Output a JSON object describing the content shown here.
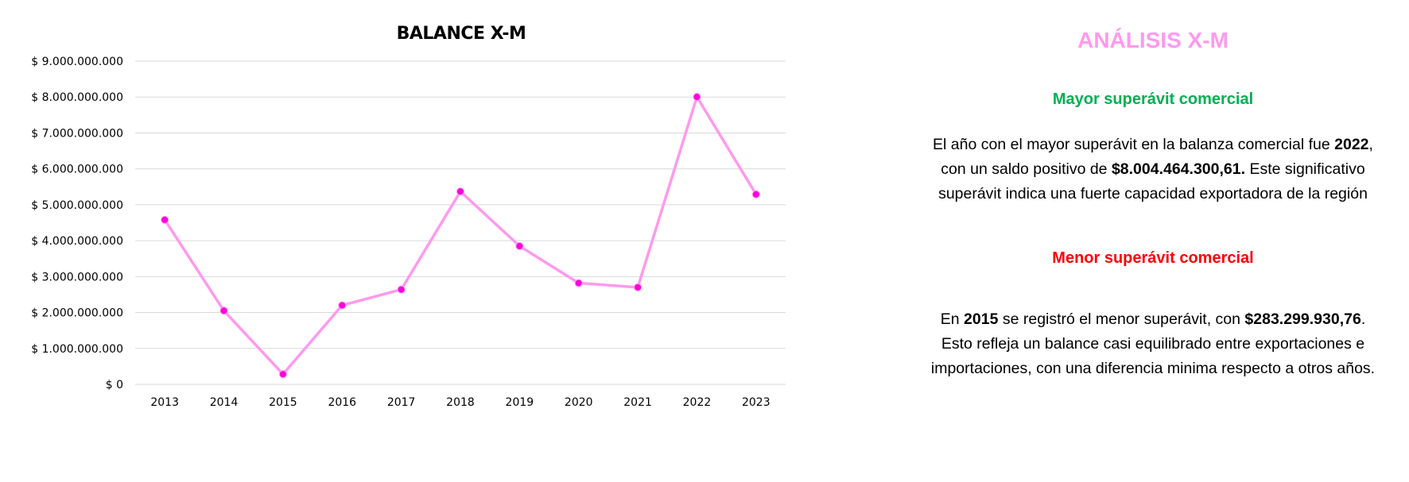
{
  "chart_data": {
    "type": "line",
    "title": "BALANCE X-M",
    "xlabel": "",
    "ylabel": "",
    "categories": [
      "2013",
      "2014",
      "2015",
      "2016",
      "2017",
      "2018",
      "2019",
      "2020",
      "2021",
      "2022",
      "2023"
    ],
    "values": [
      4580000000,
      2050000000,
      283299930.76,
      2200000000,
      2640000000,
      5370000000,
      3850000000,
      2820000000,
      2700000000,
      8004464300.61,
      5290000000
    ],
    "ylim": [
      0,
      9000000000
    ],
    "y_ticks": [
      "$ 0",
      "$ 1.000.000.000",
      "$ 2.000.000.000",
      "$ 3.000.000.000",
      "$ 4.000.000.000",
      "$ 5.000.000.000",
      "$ 6.000.000.000",
      "$ 7.000.000.000",
      "$ 8.000.000.000",
      "$ 9.000.000.000"
    ],
    "grid": true,
    "line_color": "#ff99ee",
    "marker_color": "#ff00dd",
    "grid_color": "#d9d9d9"
  },
  "analysis": {
    "title": "ANÁLISIS X-M",
    "max_section": {
      "heading": "Mayor superávit comercial",
      "segments": [
        {
          "text": "El año con el mayor superávit en la balanza comercial fue ",
          "bold": false
        },
        {
          "text": "2022",
          "bold": true
        },
        {
          "text": ", con un saldo positivo de ",
          "bold": false
        },
        {
          "text": "$8.004.464.300,61.",
          "bold": true
        },
        {
          "text": " Este significativo superávit indica una fuerte capacidad exportadora de la región",
          "bold": false
        }
      ]
    },
    "min_section": {
      "heading": "Menor superávit comercial",
      "segments": [
        {
          "text": "En ",
          "bold": false
        },
        {
          "text": "2015",
          "bold": true
        },
        {
          "text": " se registró el menor superávit, con ",
          "bold": false
        },
        {
          "text": "$283.299.930,76",
          "bold": true
        },
        {
          "text": ". Esto refleja un balance casi equilibrado entre exportaciones e importaciones, con una diferencia minima respecto a otros años.",
          "bold": false
        }
      ]
    },
    "colors": {
      "title": "#ff99ee",
      "max_heading": "#00b050",
      "min_heading": "#ff0000"
    }
  }
}
